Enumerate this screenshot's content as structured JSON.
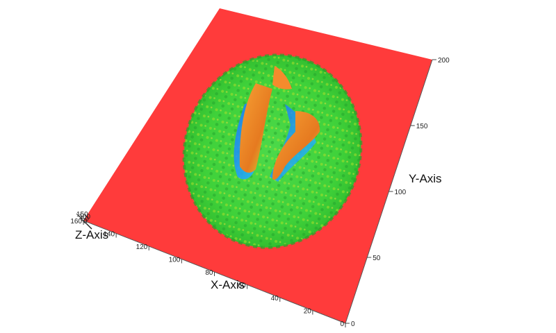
{
  "chart_data": {
    "type": "surface3d",
    "title": "",
    "x_axis": {
      "label": "X-Axis",
      "ticks": [
        "0",
        "20",
        "40",
        "60",
        "80",
        "100",
        "120",
        "140",
        "160"
      ],
      "range": [
        0,
        160
      ]
    },
    "y_axis": {
      "label": "Y-Axis",
      "ticks": [
        "0",
        "50",
        "100",
        "150",
        "200"
      ],
      "range": [
        0,
        200
      ]
    },
    "z_axis": {
      "label": "Z-Axis",
      "ticks": [
        "0",
        "50",
        "100",
        "150"
      ],
      "range": [
        0,
        150
      ]
    },
    "description_values": {
      "base_level": 0,
      "colormap": [
        "#1f3fff",
        "#00b4ff",
        "#2de84a",
        "#c8e21c",
        "#ff9a2a",
        "#ff3333"
      ]
    },
    "colors": {
      "floor": "#ff3838",
      "brain_surface": "#3ed33a",
      "ridge": "#f08a2c",
      "valley": "#1e90ff"
    }
  }
}
